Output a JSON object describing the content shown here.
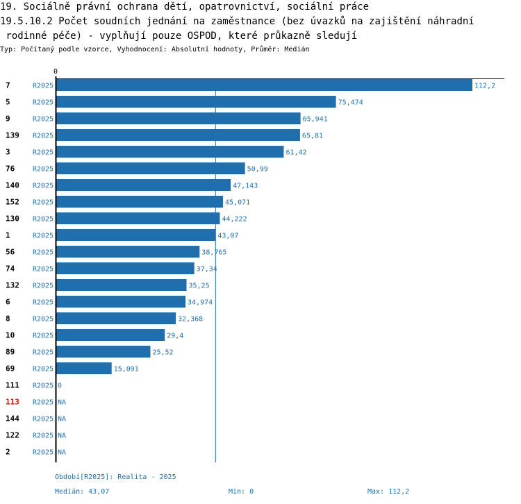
{
  "header": {
    "title_lines": [
      "19. Sociálně právní ochrana dětí, opatrovnictví, sociální práce",
      "19.5.10.2 Počet soudních jednání na zaměstnance (bez úvazků na zajištění náhradní",
      " rodinné péče) - vyplňují pouze OSPOD, které průkazně sledují"
    ],
    "subtitle": "Typ: Počítaný podle vzorce, Vyhodnocení: Absolutní hodnoty, Průměr: Medián"
  },
  "colors": {
    "bar": "#1f6fae",
    "text_blue": "#1f6fae",
    "highlight": "#ff0000",
    "axis": "#000000"
  },
  "chart_data": {
    "type": "bar",
    "orientation": "horizontal",
    "axis_min_label": "0",
    "xlim": [
      0,
      112.2
    ],
    "median_line": 43.07,
    "period_label": "R2025",
    "rows": [
      {
        "id": "7",
        "value": 112.2,
        "label": "112,2",
        "highlight": false
      },
      {
        "id": "5",
        "value": 75.474,
        "label": "75,474",
        "highlight": false
      },
      {
        "id": "9",
        "value": 65.941,
        "label": "65,941",
        "highlight": false
      },
      {
        "id": "139",
        "value": 65.81,
        "label": "65,81",
        "highlight": false
      },
      {
        "id": "3",
        "value": 61.42,
        "label": "61,42",
        "highlight": false
      },
      {
        "id": "76",
        "value": 50.99,
        "label": "50,99",
        "highlight": false
      },
      {
        "id": "140",
        "value": 47.143,
        "label": "47,143",
        "highlight": false
      },
      {
        "id": "152",
        "value": 45.071,
        "label": "45,071",
        "highlight": false
      },
      {
        "id": "130",
        "value": 44.222,
        "label": "44,222",
        "highlight": false
      },
      {
        "id": "1",
        "value": 43.07,
        "label": "43,07",
        "highlight": false
      },
      {
        "id": "56",
        "value": 38.765,
        "label": "38,765",
        "highlight": false
      },
      {
        "id": "74",
        "value": 37.34,
        "label": "37,34",
        "highlight": false
      },
      {
        "id": "132",
        "value": 35.25,
        "label": "35,25",
        "highlight": false
      },
      {
        "id": "6",
        "value": 34.974,
        "label": "34,974",
        "highlight": false
      },
      {
        "id": "8",
        "value": 32.368,
        "label": "32,368",
        "highlight": false
      },
      {
        "id": "10",
        "value": 29.4,
        "label": "29,4",
        "highlight": false
      },
      {
        "id": "89",
        "value": 25.52,
        "label": "25,52",
        "highlight": false
      },
      {
        "id": "69",
        "value": 15.091,
        "label": "15,091",
        "highlight": false
      },
      {
        "id": "111",
        "value": 0,
        "label": "0",
        "highlight": false
      },
      {
        "id": "113",
        "value": null,
        "label": "NA",
        "highlight": true
      },
      {
        "id": "144",
        "value": null,
        "label": "NA",
        "highlight": false
      },
      {
        "id": "122",
        "value": null,
        "label": "NA",
        "highlight": false
      },
      {
        "id": "2",
        "value": null,
        "label": "NA",
        "highlight": false
      }
    ]
  },
  "footer": {
    "period": "Období[R2025]: Realita - 2025",
    "median": "Medián: 43,07",
    "min": "Min: 0",
    "max": "Max: 112,2"
  }
}
